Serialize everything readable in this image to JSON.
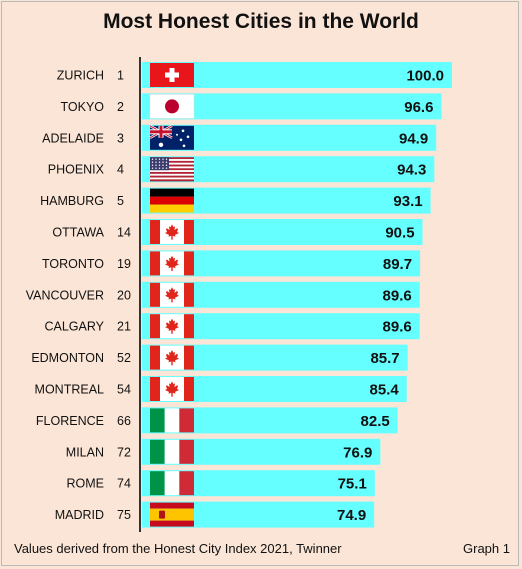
{
  "chart_data": {
    "type": "bar",
    "orientation": "horizontal",
    "title": "Most Honest Cities in the World",
    "xlabel": "",
    "ylabel": "",
    "xlim": [
      0,
      100
    ],
    "grid": false,
    "bar_color": "#66ffff",
    "categories": [
      "ZURICH",
      "TOKYO",
      "ADELAIDE",
      "PHOENIX",
      "HAMBURG",
      "OTTAWA",
      "TORONTO",
      "VANCOUVER",
      "CALGARY",
      "EDMONTON",
      "MONTREAL",
      "FLORENCE",
      "MILAN",
      "ROME",
      "MADRID"
    ],
    "ranks": [
      "1",
      "2",
      "3",
      "4",
      "5",
      "14",
      "19",
      "20",
      "21",
      "52",
      "54",
      "66",
      "72",
      "74",
      "75"
    ],
    "flags": [
      "switzerland-flag",
      "japan-flag",
      "australia-flag",
      "usa-flag",
      "germany-flag",
      "canada-flag",
      "canada-flag",
      "canada-flag",
      "canada-flag",
      "canada-flag",
      "canada-flag",
      "italy-flag",
      "italy-flag",
      "italy-flag",
      "spain-flag"
    ],
    "values": [
      100.0,
      96.6,
      94.9,
      94.3,
      93.1,
      90.5,
      89.7,
      89.6,
      89.6,
      85.7,
      85.4,
      82.5,
      76.9,
      75.1,
      74.9
    ],
    "value_labels": [
      "100.0",
      "96.6",
      "94.9",
      "94.3",
      "93.1",
      "90.5",
      "89.7",
      "89.6",
      "89.6",
      "85.7",
      "85.4",
      "82.5",
      "76.9",
      "75.1",
      "74.9"
    ]
  },
  "footer": {
    "source": "Values derived from the Honest City Index 2021, Twinner",
    "graph_label": "Graph 1"
  }
}
